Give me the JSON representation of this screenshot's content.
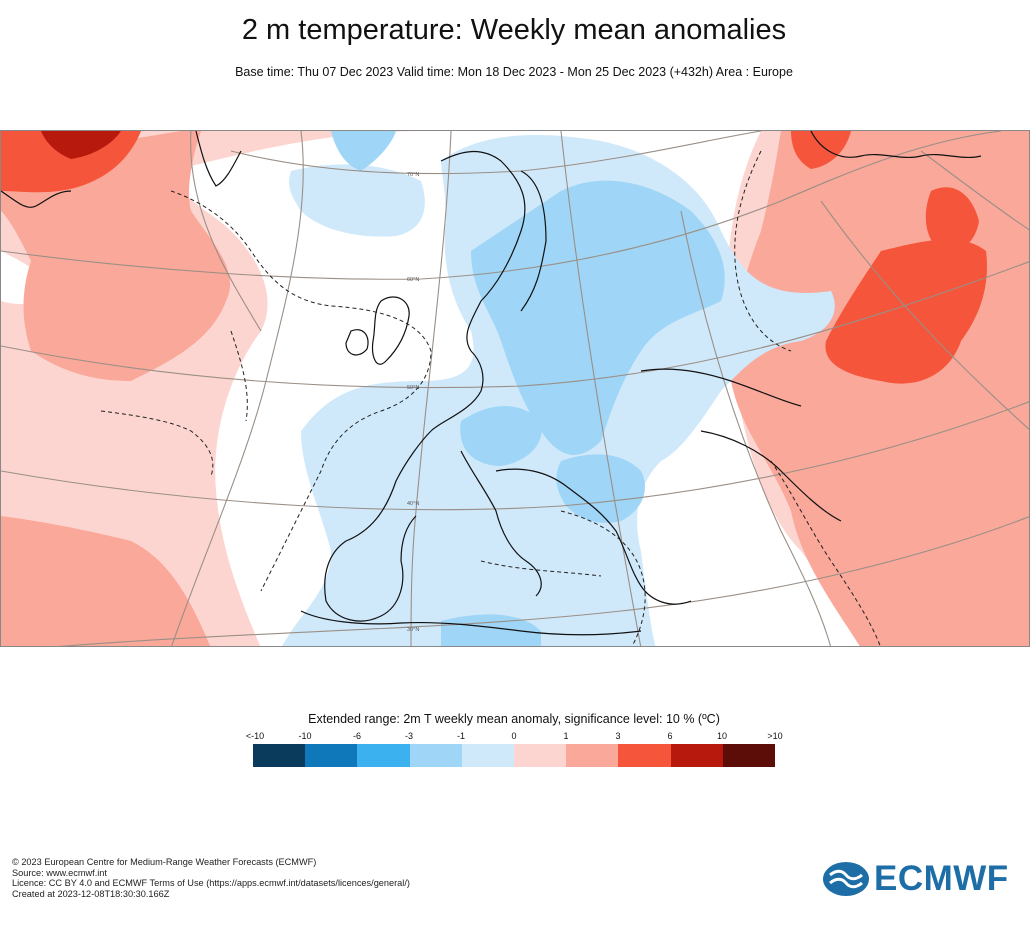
{
  "title": "2 m temperature: Weekly mean anomalies",
  "subtitle": "Base time: Thu 07 Dec 2023 Valid time: Mon 18 Dec 2023 - Mon 25 Dec 2023 (+432h) Area : Europe",
  "map": {
    "lat_labels": [
      "70°N",
      "60°N",
      "50°N",
      "40°N",
      "30°N"
    ]
  },
  "legend": {
    "title": "Extended range: 2m T weekly mean anomaly, significance level: 10 % (ºC)",
    "ticks": [
      "<-10",
      "-10",
      "-6",
      "-3",
      "-1",
      "0",
      "1",
      "3",
      "6",
      "10",
      ">10"
    ],
    "colors": [
      "#0a3a5c",
      "#0e78bb",
      "#3cb1f0",
      "#9fd5f6",
      "#cfe9fb",
      "#fdd5d0",
      "#f9a89a",
      "#f5553a",
      "#b71a0d",
      "#5c0d07"
    ]
  },
  "footer": {
    "line1": "© 2023 European Centre for Medium-Range Weather Forecasts (ECMWF)",
    "line2": "Source: www.ecmwf.int",
    "line3": "Licence: CC BY 4.0 and ECMWF Terms of Use (https://apps.ecmwf.int/datasets/licences/general/)",
    "line4": "Created at 2023-12-08T18:30:30.166Z"
  },
  "logo": {
    "text": "ECMWF",
    "color": "#1d6ea6"
  }
}
